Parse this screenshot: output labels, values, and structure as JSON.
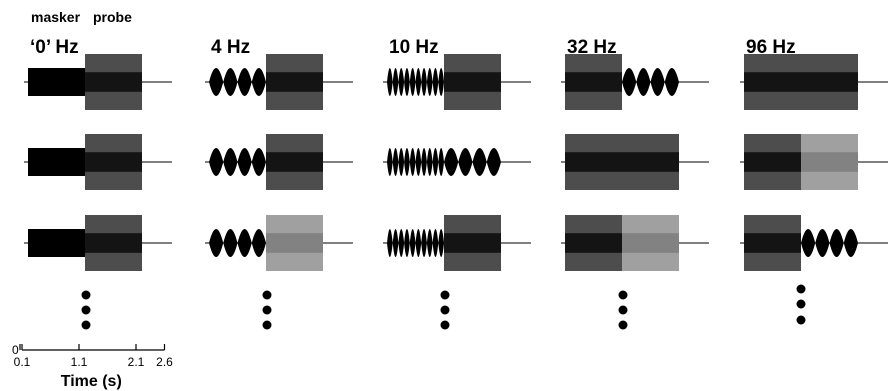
{
  "header": {
    "masker_label": "masker",
    "probe_label": "probe"
  },
  "columns": [
    {
      "label": "‘0’ Hz",
      "masker_rate": 0,
      "rows": [
        {
          "probe_rate": 32
        },
        {
          "probe_rate": 96
        },
        {
          "probe_rate": 250
        }
      ]
    },
    {
      "label": "4 Hz",
      "masker_rate": 4,
      "rows": [
        {
          "probe_rate": 32
        },
        {
          "probe_rate": 250
        },
        {
          "probe_rate": 16
        }
      ]
    },
    {
      "label": "10 Hz",
      "masker_rate": 10,
      "rows": [
        {
          "probe_rate": 250
        },
        {
          "probe_rate": 4
        },
        {
          "probe_rate": 32
        }
      ]
    },
    {
      "label": "32 Hz",
      "masker_rate": 32,
      "rows": [
        {
          "probe_rate": 4
        },
        {
          "probe_rate": 250
        },
        {
          "probe_rate": 16
        }
      ]
    },
    {
      "label": "96 Hz",
      "masker_rate": 96,
      "rows": [
        {
          "probe_rate": 32
        },
        {
          "probe_rate": 16
        },
        {
          "probe_rate": 4
        }
      ]
    }
  ],
  "time_axis": {
    "origin_label": "0",
    "tick_labels": [
      "0.1",
      "1.1",
      "2.1",
      "2.6"
    ],
    "tick_values": [
      0.1,
      1.1,
      2.1,
      2.6
    ],
    "title": "Time (s)"
  },
  "timing": {
    "masker_start": 0.1,
    "masker_end": 1.1,
    "probe_end": 2.1
  }
}
